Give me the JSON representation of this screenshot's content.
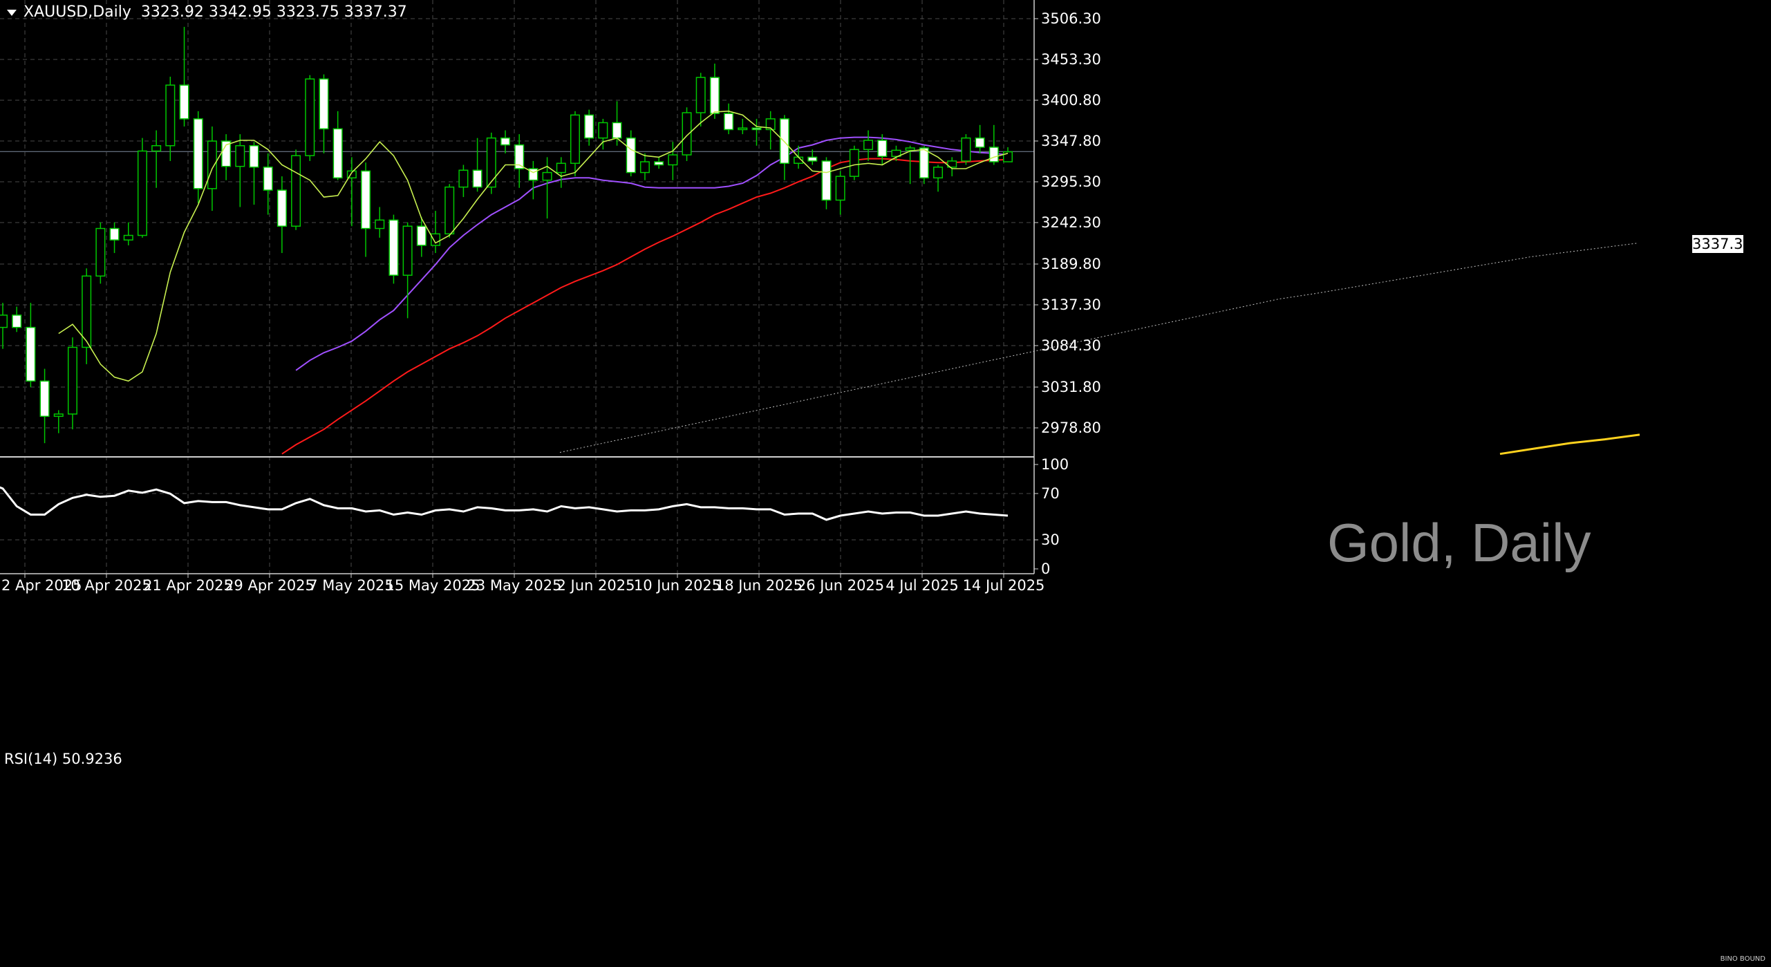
{
  "header": {
    "symbol": "XAUUSD,Daily",
    "ohlc": "3323.92 3342.95 3323.75 3337.37"
  },
  "current_price_label": "3337.37",
  "watermark": "Gold, Daily",
  "rsi_label": "RSI(14) 50.9236",
  "logo_text": "BINO BOUND",
  "colors": {
    "background": "#000000",
    "grid": "#4a4a4a",
    "bull_candle": "#000000",
    "bear_candle": "#ffffff",
    "wick": "#00c800",
    "ma_fast": "#c8f050",
    "ma_mid": "#a050ff",
    "ma_slow": "#ff1a1a",
    "ma_long": "#c0c0c0",
    "ma_very_long": "#ffd21e",
    "rsi": "#ffffff"
  },
  "chart_data": {
    "type": "candlestick",
    "title": "XAUUSD,Daily",
    "price_axis_labels": [
      "3506.30",
      "3453.30",
      "3400.80",
      "3347.80",
      "3295.30",
      "3242.30",
      "3189.80",
      "3137.30",
      "3084.30",
      "3031.80",
      "2978.80"
    ],
    "rsi_axis_labels": [
      "100",
      "70",
      "30",
      "0"
    ],
    "x_tick_labels": [
      "2 Apr 2025",
      "10 Apr 2025",
      "21 Apr 2025",
      "29 Apr 2025",
      "7 May 2025",
      "15 May 2025",
      "23 May 2025",
      "2 Jun 2025",
      "10 Jun 2025",
      "18 Jun 2025",
      "26 Jun 2025",
      "4 Jul 2025",
      "14 Jul 2025"
    ],
    "ylim": [
      2940,
      3535
    ],
    "candles": [
      {
        "o": 3108,
        "h": 3140,
        "l": 3080,
        "c": 3124
      },
      {
        "o": 3124,
        "h": 3135,
        "l": 3102,
        "c": 3108
      },
      {
        "o": 3108,
        "h": 3140,
        "l": 3030,
        "c": 3038
      },
      {
        "o": 3038,
        "h": 3054,
        "l": 2957,
        "c": 2992
      },
      {
        "o": 2992,
        "h": 3000,
        "l": 2970,
        "c": 2995
      },
      {
        "o": 2995,
        "h": 3095,
        "l": 2975,
        "c": 3082
      },
      {
        "o": 3082,
        "h": 3185,
        "l": 3060,
        "c": 3175
      },
      {
        "o": 3175,
        "h": 3245,
        "l": 3165,
        "c": 3237
      },
      {
        "o": 3237,
        "h": 3245,
        "l": 3205,
        "c": 3222
      },
      {
        "o": 3222,
        "h": 3245,
        "l": 3215,
        "c": 3228
      },
      {
        "o": 3228,
        "h": 3355,
        "l": 3225,
        "c": 3338
      },
      {
        "o": 3338,
        "h": 3365,
        "l": 3290,
        "c": 3345
      },
      {
        "o": 3345,
        "h": 3435,
        "l": 3325,
        "c": 3424
      },
      {
        "o": 3424,
        "h": 3500,
        "l": 3370,
        "c": 3380
      },
      {
        "o": 3380,
        "h": 3390,
        "l": 3270,
        "c": 3289
      },
      {
        "o": 3289,
        "h": 3370,
        "l": 3260,
        "c": 3351
      },
      {
        "o": 3351,
        "h": 3360,
        "l": 3300,
        "c": 3318
      },
      {
        "o": 3318,
        "h": 3360,
        "l": 3265,
        "c": 3345
      },
      {
        "o": 3345,
        "h": 3350,
        "l": 3268,
        "c": 3317
      },
      {
        "o": 3317,
        "h": 3335,
        "l": 3255,
        "c": 3287
      },
      {
        "o": 3287,
        "h": 3305,
        "l": 3205,
        "c": 3240
      },
      {
        "o": 3240,
        "h": 3340,
        "l": 3235,
        "c": 3332
      },
      {
        "o": 3332,
        "h": 3437,
        "l": 3325,
        "c": 3432
      },
      {
        "o": 3432,
        "h": 3438,
        "l": 3335,
        "c": 3367
      },
      {
        "o": 3367,
        "h": 3390,
        "l": 3300,
        "c": 3303
      },
      {
        "o": 3303,
        "h": 3330,
        "l": 3240,
        "c": 3312
      },
      {
        "o": 3312,
        "h": 3323,
        "l": 3200,
        "c": 3237
      },
      {
        "o": 3237,
        "h": 3265,
        "l": 3225,
        "c": 3248
      },
      {
        "o": 3248,
        "h": 3255,
        "l": 3165,
        "c": 3176
      },
      {
        "o": 3176,
        "h": 3245,
        "l": 3120,
        "c": 3240
      },
      {
        "o": 3240,
        "h": 3252,
        "l": 3200,
        "c": 3215
      },
      {
        "o": 3215,
        "h": 3260,
        "l": 3205,
        "c": 3230
      },
      {
        "o": 3230,
        "h": 3295,
        "l": 3225,
        "c": 3291
      },
      {
        "o": 3291,
        "h": 3320,
        "l": 3278,
        "c": 3313
      },
      {
        "o": 3313,
        "h": 3355,
        "l": 3285,
        "c": 3291
      },
      {
        "o": 3291,
        "h": 3362,
        "l": 3282,
        "c": 3355
      },
      {
        "o": 3355,
        "h": 3365,
        "l": 3335,
        "c": 3346
      },
      {
        "o": 3346,
        "h": 3360,
        "l": 3290,
        "c": 3315
      },
      {
        "o": 3315,
        "h": 3325,
        "l": 3275,
        "c": 3300
      },
      {
        "o": 3300,
        "h": 3330,
        "l": 3250,
        "c": 3310
      },
      {
        "o": 3310,
        "h": 3330,
        "l": 3290,
        "c": 3322
      },
      {
        "o": 3322,
        "h": 3390,
        "l": 3305,
        "c": 3385
      },
      {
        "o": 3385,
        "h": 3392,
        "l": 3345,
        "c": 3355
      },
      {
        "o": 3355,
        "h": 3380,
        "l": 3340,
        "c": 3375
      },
      {
        "o": 3375,
        "h": 3403,
        "l": 3345,
        "c": 3355
      },
      {
        "o": 3355,
        "h": 3365,
        "l": 3305,
        "c": 3310
      },
      {
        "o": 3310,
        "h": 3335,
        "l": 3300,
        "c": 3324
      },
      {
        "o": 3324,
        "h": 3330,
        "l": 3315,
        "c": 3320
      },
      {
        "o": 3320,
        "h": 3350,
        "l": 3300,
        "c": 3333
      },
      {
        "o": 3333,
        "h": 3395,
        "l": 3325,
        "c": 3388
      },
      {
        "o": 3388,
        "h": 3440,
        "l": 3370,
        "c": 3434
      },
      {
        "o": 3434,
        "h": 3452,
        "l": 3380,
        "c": 3387
      },
      {
        "o": 3387,
        "h": 3400,
        "l": 3360,
        "c": 3366
      },
      {
        "o": 3366,
        "h": 3380,
        "l": 3360,
        "c": 3368
      },
      {
        "o": 3368,
        "h": 3380,
        "l": 3345,
        "c": 3366
      },
      {
        "o": 3366,
        "h": 3390,
        "l": 3340,
        "c": 3380
      },
      {
        "o": 3380,
        "h": 3385,
        "l": 3300,
        "c": 3322
      },
      {
        "o": 3322,
        "h": 3345,
        "l": 3315,
        "c": 3330
      },
      {
        "o": 3330,
        "h": 3340,
        "l": 3320,
        "c": 3325
      },
      {
        "o": 3325,
        "h": 3330,
        "l": 3262,
        "c": 3274
      },
      {
        "o": 3274,
        "h": 3312,
        "l": 3255,
        "c": 3305
      },
      {
        "o": 3305,
        "h": 3345,
        "l": 3300,
        "c": 3340
      },
      {
        "o": 3340,
        "h": 3365,
        "l": 3325,
        "c": 3352
      },
      {
        "o": 3352,
        "h": 3360,
        "l": 3320,
        "c": 3331
      },
      {
        "o": 3331,
        "h": 3345,
        "l": 3325,
        "c": 3339
      },
      {
        "o": 3339,
        "h": 3345,
        "l": 3295,
        "c": 3342
      },
      {
        "o": 3342,
        "h": 3345,
        "l": 3295,
        "c": 3303
      },
      {
        "o": 3303,
        "h": 3320,
        "l": 3285,
        "c": 3317
      },
      {
        "o": 3317,
        "h": 3330,
        "l": 3305,
        "c": 3325
      },
      {
        "o": 3325,
        "h": 3360,
        "l": 3320,
        "c": 3355
      },
      {
        "o": 3355,
        "h": 3372,
        "l": 3335,
        "c": 3343
      },
      {
        "o": 3343,
        "h": 3372,
        "l": 3320,
        "c": 3324
      },
      {
        "o": 3324,
        "h": 3343,
        "l": 3324,
        "c": 3337
      }
    ],
    "ma_fast": [
      3100,
      3112,
      3090,
      3060,
      3043,
      3038,
      3050,
      3100,
      3180,
      3232,
      3268,
      3315,
      3346,
      3352,
      3352,
      3340,
      3320,
      3310,
      3300,
      3278,
      3280,
      3310,
      3328,
      3350,
      3332,
      3300,
      3250,
      3218,
      3228,
      3250,
      3275,
      3298,
      3320,
      3320,
      3310,
      3318,
      3305,
      3310,
      3330,
      3350,
      3355,
      3340,
      3332,
      3330,
      3338,
      3358,
      3375,
      3389,
      3390,
      3385,
      3370,
      3368,
      3350,
      3330,
      3312,
      3310,
      3315,
      3320,
      3322,
      3320,
      3330,
      3338,
      3340,
      3330,
      3315,
      3315,
      3323,
      3330,
      3335
    ],
    "ma_mid": [
      3052,
      3065,
      3075,
      3082,
      3090,
      3103,
      3118,
      3130,
      3150,
      3170,
      3190,
      3212,
      3228,
      3242,
      3255,
      3265,
      3275,
      3290,
      3296,
      3301,
      3303,
      3303,
      3300,
      3298,
      3296,
      3291,
      3290,
      3290,
      3290,
      3290,
      3290,
      3292,
      3296,
      3306,
      3320,
      3330,
      3342,
      3346,
      3352,
      3355,
      3356,
      3356,
      3355,
      3353,
      3350,
      3346,
      3343,
      3340,
      3338,
      3336,
      3335,
      3333
    ],
    "ma_slow": [
      2943,
      2955,
      2965,
      2975,
      2988,
      3000,
      3012,
      3025,
      3038,
      3050,
      3060,
      3070,
      3080,
      3088,
      3097,
      3108,
      3120,
      3130,
      3140,
      3150,
      3160,
      3168,
      3175,
      3182,
      3190,
      3200,
      3210,
      3219,
      3227,
      3236,
      3245,
      3255,
      3262,
      3270,
      3278,
      3283,
      3290,
      3298,
      3305,
      3315,
      3323,
      3326,
      3328,
      3328,
      3327,
      3325,
      3324,
      3323,
      3323,
      3324,
      3325,
      3326,
      3327
    ],
    "ma_long": [
      2945,
      2955,
      2965,
      2975,
      2985,
      2995,
      3005,
      3015,
      3025,
      3035,
      3045,
      3055,
      3065,
      3075,
      3085,
      3095,
      3105,
      3115,
      3125,
      3135,
      3145,
      3152,
      3160,
      3168,
      3176,
      3184,
      3192,
      3200,
      3206,
      3212,
      3218
    ],
    "ma_very_long": [
      2943,
      2950,
      2957,
      2962,
      2968
    ],
    "rsi": [
      82,
      77,
      60,
      52,
      52,
      62,
      68,
      71,
      69,
      70,
      75,
      73,
      76,
      72,
      63,
      65,
      64,
      64,
      61,
      59,
      57,
      57,
      63,
      67,
      61,
      58,
      58,
      55,
      56,
      52,
      54,
      52,
      56,
      57,
      55,
      59,
      58,
      56,
      56,
      57,
      55,
      60,
      58,
      59,
      57,
      55,
      56,
      56,
      57,
      60,
      62,
      59,
      59,
      58,
      58,
      57,
      57,
      52,
      53,
      53,
      47,
      51,
      53,
      55,
      53,
      54,
      54,
      51,
      51,
      53,
      55,
      53,
      52,
      51
    ]
  }
}
